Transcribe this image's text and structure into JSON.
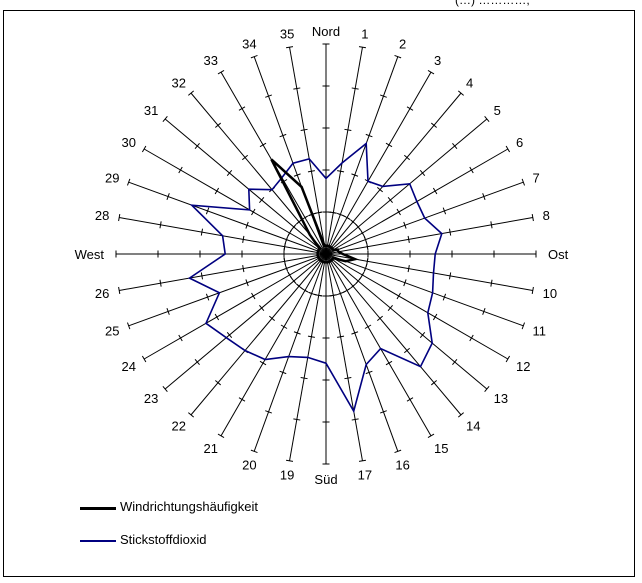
{
  "header_fragment": "(…) …………, ",
  "chart_data": {
    "type": "radar",
    "directions": [
      "Nord",
      "1",
      "2",
      "3",
      "4",
      "5",
      "6",
      "7",
      "8",
      "Ost",
      "10",
      "11",
      "12",
      "13",
      "14",
      "15",
      "16",
      "17",
      "Süd",
      "19",
      "20",
      "21",
      "22",
      "23",
      "24",
      "25",
      "26",
      "West",
      "28",
      "29",
      "30",
      "31",
      "32",
      "33",
      "34",
      "35"
    ],
    "rings": 5,
    "grid": true,
    "legend_position": "bottom-left",
    "series": [
      {
        "name": "Windrichtungshäufigkeit",
        "color": "#000000",
        "values": [
          0.2,
          0.2,
          0.2,
          0.2,
          0.2,
          0.2,
          0.2,
          0.3,
          0.3,
          0.4,
          0.7,
          0.5,
          0.2,
          0.2,
          0.2,
          0.2,
          0.2,
          0.2,
          0.2,
          0.2,
          0.2,
          0.2,
          0.2,
          0.2,
          0.2,
          0.2,
          0.2,
          0.2,
          0.2,
          0.2,
          0.2,
          0.2,
          0.6,
          2.6,
          1.7,
          0.2
        ]
      },
      {
        "name": "Stickstoffdioxid",
        "color": "#000080",
        "values": [
          1.8,
          2.2,
          2.8,
          2.0,
          2.1,
          2.6,
          2.5,
          2.5,
          2.8,
          2.6,
          2.6,
          2.7,
          2.8,
          3.3,
          3.5,
          2.6,
          2.8,
          3.8,
          2.6,
          2.5,
          2.6,
          2.9,
          3.0,
          3.1,
          3.3,
          2.7,
          3.3,
          2.4,
          2.5,
          3.4,
          2.1,
          2.4,
          2.0,
          2.1,
          2.3,
          2.3
        ]
      }
    ],
    "legend": [
      "Windrichtungshäufigkeit",
      "Stickstoffdioxid"
    ]
  }
}
